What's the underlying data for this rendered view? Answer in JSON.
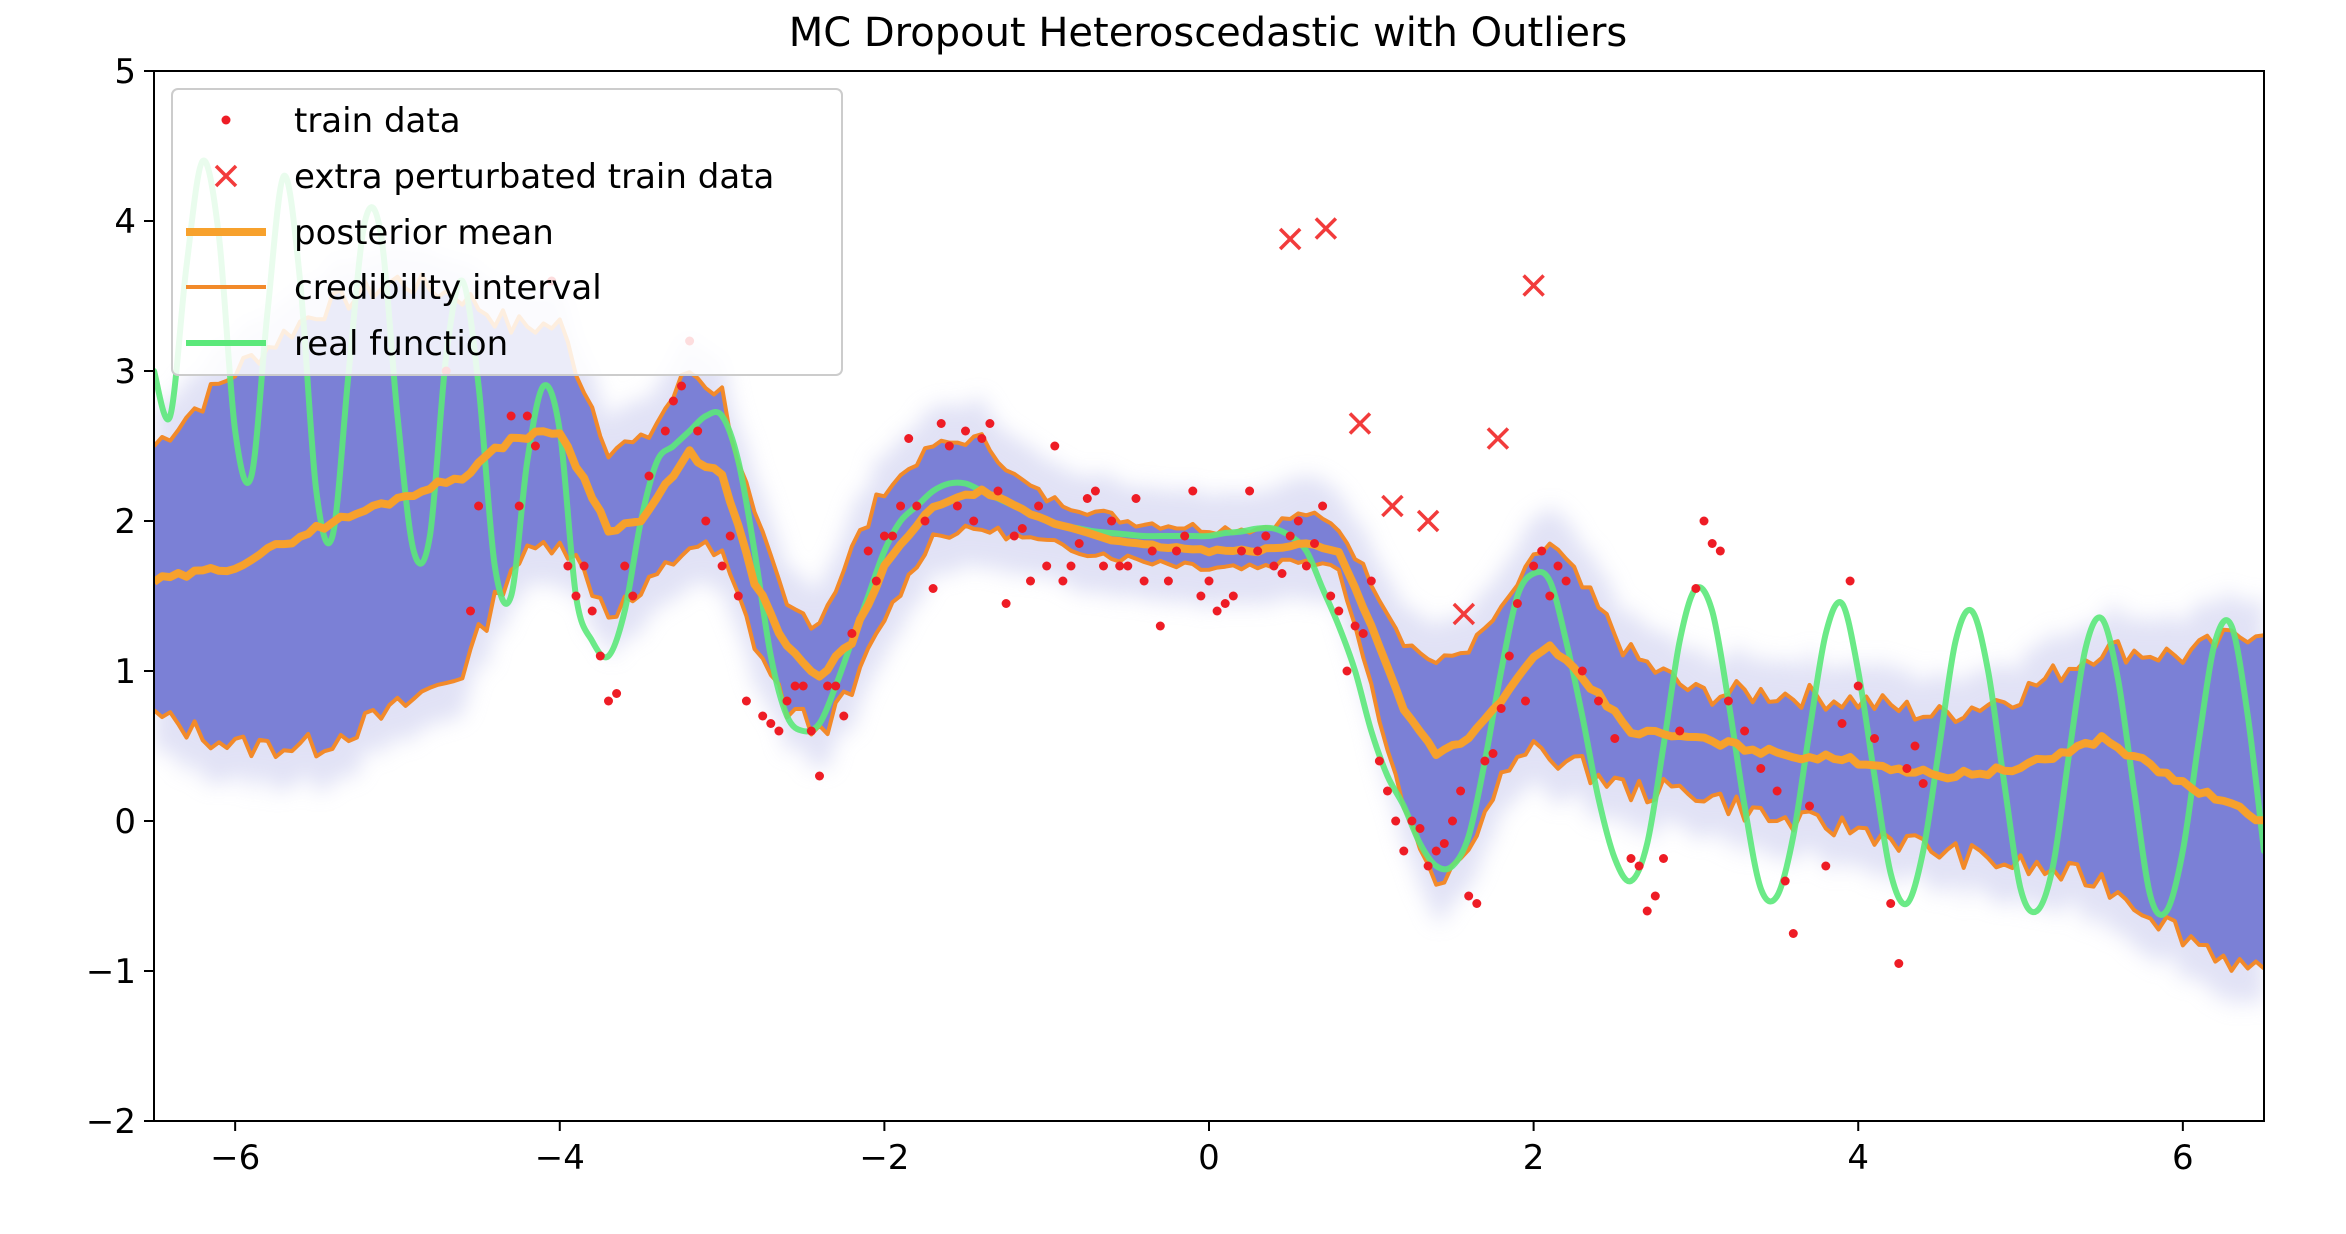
{
  "chart_data": {
    "type": "line",
    "title": "MC Dropout Heteroscedastic with Outliers",
    "xlabel": "",
    "ylabel": "",
    "xlim": [
      -6.5,
      6.5
    ],
    "ylim": [
      -2,
      5
    ],
    "xticks": [
      -6,
      -4,
      -2,
      0,
      2,
      4,
      6
    ],
    "xtick_labels": [
      "−6",
      "−4",
      "−2",
      "0",
      "2",
      "4",
      "6"
    ],
    "yticks": [
      -2,
      -1,
      0,
      1,
      2,
      3,
      4,
      5
    ],
    "ytick_labels": [
      "−2",
      "−1",
      "0",
      "1",
      "2",
      "3",
      "4",
      "5"
    ],
    "grid": false,
    "legend_position": "top-left",
    "legend": [
      {
        "key": "train",
        "label": "train data"
      },
      {
        "key": "outliers",
        "label": "extra perturbated train data"
      },
      {
        "key": "mean",
        "label": "posterior mean"
      },
      {
        "key": "interval",
        "label": "credibility interval"
      },
      {
        "key": "real",
        "label": "real function"
      }
    ],
    "colors": {
      "train": "#ee1c25",
      "outliers": "#f23b3b",
      "mean": "#f7a12c",
      "interval": "#f28a2a",
      "real": "#5be87a",
      "band": "#7b80d6",
      "band_haze": "#c9cbee"
    },
    "posterior_mean": {
      "x": [
        -6.5,
        -6.0,
        -5.5,
        -5.0,
        -4.6,
        -4.3,
        -4.0,
        -3.7,
        -3.5,
        -3.2,
        -3.0,
        -2.8,
        -2.6,
        -2.4,
        -2.2,
        -2.0,
        -1.7,
        -1.4,
        -1.2,
        -1.0,
        -0.5,
        0.0,
        0.3,
        0.6,
        0.8,
        1.0,
        1.2,
        1.4,
        1.6,
        1.8,
        2.0,
        2.1,
        2.3,
        2.6,
        3.0,
        3.5,
        4.0,
        4.5,
        5.0,
        5.5,
        6.0,
        6.5
      ],
      "y": [
        1.6,
        1.7,
        1.95,
        2.15,
        2.3,
        2.55,
        2.6,
        1.95,
        2.0,
        2.45,
        2.3,
        1.6,
        1.15,
        0.95,
        1.2,
        1.7,
        2.1,
        2.2,
        2.1,
        2.0,
        1.85,
        1.8,
        1.8,
        1.85,
        1.8,
        1.3,
        0.75,
        0.45,
        0.55,
        0.8,
        1.1,
        1.15,
        0.95,
        0.6,
        0.55,
        0.45,
        0.4,
        0.3,
        0.35,
        0.55,
        0.25,
        0.0
      ]
    },
    "credibility_upper": {
      "x": [
        -6.5,
        -6.0,
        -5.5,
        -5.0,
        -4.6,
        -4.3,
        -4.0,
        -3.7,
        -3.5,
        -3.2,
        -3.0,
        -2.8,
        -2.6,
        -2.4,
        -2.2,
        -2.0,
        -1.7,
        -1.4,
        -1.2,
        -1.0,
        -0.5,
        0.0,
        0.3,
        0.6,
        0.8,
        1.0,
        1.2,
        1.4,
        1.6,
        1.8,
        2.0,
        2.1,
        2.3,
        2.6,
        3.0,
        3.5,
        4.0,
        4.5,
        5.0,
        5.5,
        6.0,
        6.5
      ],
      "y": [
        2.5,
        3.0,
        3.4,
        3.6,
        3.5,
        3.3,
        3.3,
        2.5,
        2.5,
        3.0,
        2.85,
        2.0,
        1.4,
        1.35,
        1.8,
        2.2,
        2.5,
        2.55,
        2.3,
        2.15,
        2.0,
        1.95,
        1.95,
        2.05,
        1.95,
        1.6,
        1.2,
        1.05,
        1.15,
        1.4,
        1.75,
        1.85,
        1.55,
        1.1,
        0.85,
        0.85,
        0.8,
        0.7,
        0.85,
        1.15,
        1.1,
        1.3
      ]
    },
    "credibility_lower": {
      "x": [
        -6.5,
        -6.0,
        -5.5,
        -5.0,
        -4.6,
        -4.3,
        -4.0,
        -3.7,
        -3.5,
        -3.2,
        -3.0,
        -2.8,
        -2.6,
        -2.4,
        -2.2,
        -2.0,
        -1.7,
        -1.4,
        -1.2,
        -1.0,
        -0.5,
        0.0,
        0.3,
        0.6,
        0.8,
        1.0,
        1.2,
        1.4,
        1.6,
        1.8,
        2.0,
        2.1,
        2.3,
        2.6,
        3.0,
        3.5,
        4.0,
        4.5,
        5.0,
        5.5,
        6.0,
        6.5
      ],
      "y": [
        0.7,
        0.5,
        0.5,
        0.75,
        1.0,
        1.7,
        1.9,
        1.4,
        1.5,
        1.85,
        1.75,
        1.2,
        0.75,
        0.6,
        0.85,
        1.35,
        1.9,
        1.95,
        1.9,
        1.85,
        1.75,
        1.7,
        1.7,
        1.75,
        1.7,
        0.9,
        0.1,
        -0.45,
        -0.2,
        0.3,
        0.5,
        0.45,
        0.35,
        0.2,
        0.2,
        0.0,
        -0.05,
        -0.2,
        -0.3,
        -0.4,
        -0.75,
        -1.05
      ]
    },
    "real_function": {
      "x": [
        -6.5,
        -6.4,
        -6.3,
        -6.2,
        -6.1,
        -6.0,
        -5.9,
        -5.8,
        -5.7,
        -5.6,
        -5.5,
        -5.4,
        -5.3,
        -5.2,
        -5.1,
        -5.0,
        -4.9,
        -4.8,
        -4.7,
        -4.6,
        -4.5,
        -4.4,
        -4.3,
        -4.2,
        -4.1,
        -4.0,
        -3.9,
        -3.8,
        -3.7,
        -3.6,
        -3.5,
        -3.4,
        -3.3,
        -3.2,
        -3.1,
        -3.0,
        -2.9,
        -2.8,
        -2.7,
        -2.6,
        -2.5,
        -2.4,
        -2.3,
        -2.2,
        -2.1,
        -2.0,
        -1.9,
        -1.8,
        -1.7,
        -1.6,
        -1.5,
        -1.4,
        -1.3,
        -1.2,
        -1.1,
        -1.0,
        -0.9,
        -0.8,
        -0.7,
        -0.6,
        -0.5,
        -0.4,
        -0.3,
        -0.2,
        -0.1,
        0.0,
        0.1,
        0.2,
        0.3,
        0.4,
        0.5,
        0.6,
        0.7,
        0.8,
        0.9,
        1.0,
        1.1,
        1.2,
        1.3,
        1.4,
        1.5,
        1.6,
        1.7,
        1.8,
        1.9,
        2.0,
        2.1,
        2.2,
        2.3,
        2.4,
        2.5,
        2.6,
        2.7,
        2.8,
        2.9,
        3.0,
        3.1,
        3.2,
        3.3,
        3.4,
        3.5,
        3.6,
        3.7,
        3.8,
        3.9,
        4.0,
        4.1,
        4.2,
        4.3,
        4.4,
        4.5,
        4.6,
        4.7,
        4.8,
        4.9,
        5.0,
        5.1,
        5.2,
        5.3,
        5.4,
        5.5,
        5.6,
        5.7,
        5.8,
        5.9,
        6.0,
        6.1,
        6.2,
        6.3,
        6.4,
        6.5
      ],
      "y": [
        3.0,
        2.7,
        3.7,
        4.4,
        3.9,
        2.6,
        2.3,
        3.4,
        4.3,
        3.6,
        2.2,
        1.9,
        3.0,
        4.0,
        3.9,
        2.7,
        1.8,
        1.9,
        3.1,
        3.6,
        2.9,
        1.7,
        1.5,
        2.4,
        2.9,
        2.6,
        1.5,
        1.2,
        1.1,
        1.4,
        2.0,
        2.4,
        2.5,
        2.6,
        2.7,
        2.7,
        2.4,
        1.8,
        1.1,
        0.7,
        0.6,
        0.65,
        0.9,
        1.2,
        1.5,
        1.8,
        2.0,
        2.1,
        2.2,
        2.25,
        2.25,
        2.2,
        2.15,
        2.1,
        2.05,
        2.0,
        1.97,
        1.95,
        1.93,
        1.92,
        1.91,
        1.9,
        1.9,
        1.9,
        1.9,
        1.9,
        1.92,
        1.93,
        1.95,
        1.95,
        1.9,
        1.8,
        1.55,
        1.3,
        1.0,
        0.6,
        0.3,
        0.1,
        -0.15,
        -0.3,
        -0.3,
        -0.1,
        0.4,
        1.0,
        1.5,
        1.65,
        1.6,
        1.2,
        0.7,
        0.15,
        -0.25,
        -0.4,
        -0.15,
        0.5,
        1.2,
        1.55,
        1.4,
        0.8,
        0.1,
        -0.45,
        -0.5,
        -0.1,
        0.6,
        1.25,
        1.45,
        1.0,
        0.3,
        -0.35,
        -0.55,
        -0.2,
        0.5,
        1.2,
        1.4,
        1.0,
        0.25,
        -0.45,
        -0.6,
        -0.3,
        0.45,
        1.15,
        1.35,
        0.95,
        0.2,
        -0.5,
        -0.6,
        -0.2,
        0.55,
        1.2,
        1.3,
        0.7,
        -0.2
      ]
    },
    "train_points": {
      "x": [
        -4.7,
        -4.55,
        -4.5,
        -4.3,
        -4.25,
        -4.2,
        -4.15,
        -4.05,
        -3.95,
        -3.9,
        -3.85,
        -3.8,
        -3.75,
        -3.7,
        -3.65,
        -3.6,
        -3.55,
        -3.45,
        -3.35,
        -3.3,
        -3.25,
        -3.2,
        -3.15,
        -3.1,
        -3.0,
        -2.95,
        -2.9,
        -2.85,
        -2.75,
        -2.7,
        -2.65,
        -2.6,
        -2.55,
        -2.5,
        -2.45,
        -2.4,
        -2.35,
        -2.3,
        -2.25,
        -2.2,
        -2.1,
        -2.05,
        -2.0,
        -1.95,
        -1.9,
        -1.85,
        -1.8,
        -1.75,
        -1.7,
        -1.65,
        -1.6,
        -1.55,
        -1.5,
        -1.45,
        -1.4,
        -1.35,
        -1.3,
        -1.25,
        -1.2,
        -1.15,
        -1.1,
        -1.05,
        -1.0,
        -0.95,
        -0.9,
        -0.85,
        -0.8,
        -0.75,
        -0.7,
        -0.65,
        -0.6,
        -0.55,
        -0.5,
        -0.45,
        -0.4,
        -0.35,
        -0.3,
        -0.25,
        -0.2,
        -0.15,
        -0.1,
        -0.05,
        0.0,
        0.05,
        0.1,
        0.15,
        0.2,
        0.25,
        0.3,
        0.35,
        0.4,
        0.45,
        0.5,
        0.55,
        0.6,
        0.65,
        0.7,
        0.75,
        0.8,
        0.85,
        0.9,
        0.95,
        1.0,
        1.05,
        1.1,
        1.15,
        1.2,
        1.25,
        1.3,
        1.35,
        1.4,
        1.45,
        1.5,
        1.55,
        1.6,
        1.65,
        1.7,
        1.75,
        1.8,
        1.85,
        1.9,
        1.95,
        2.0,
        2.05,
        2.1,
        2.15,
        2.2,
        2.3,
        2.4,
        2.5,
        2.6,
        2.65,
        2.7,
        2.75,
        2.8,
        2.9,
        3.0,
        3.05,
        3.1,
        3.15,
        3.2,
        3.3,
        3.4,
        3.5,
        3.55,
        3.6,
        3.7,
        3.8,
        3.9,
        3.95,
        4.0,
        4.1,
        4.2,
        4.25,
        4.3,
        4.35,
        4.4
      ],
      "y": [
        3.0,
        1.4,
        2.1,
        2.7,
        2.1,
        2.7,
        2.5,
        3.6,
        1.7,
        1.5,
        1.7,
        1.4,
        1.1,
        0.8,
        0.85,
        1.7,
        1.5,
        2.3,
        2.6,
        2.8,
        2.9,
        3.2,
        2.6,
        2.0,
        1.7,
        1.9,
        1.5,
        0.8,
        0.7,
        0.65,
        0.6,
        0.8,
        0.9,
        0.9,
        0.6,
        0.3,
        0.9,
        0.9,
        0.7,
        1.25,
        1.8,
        1.6,
        1.9,
        1.9,
        2.1,
        2.55,
        2.1,
        2.0,
        1.55,
        2.65,
        2.5,
        2.1,
        2.6,
        2.0,
        2.55,
        2.65,
        2.2,
        1.45,
        1.9,
        1.95,
        1.6,
        2.1,
        1.7,
        2.5,
        1.6,
        1.7,
        1.85,
        2.15,
        2.2,
        1.7,
        2.0,
        1.7,
        1.7,
        2.15,
        1.6,
        1.8,
        1.3,
        1.6,
        1.8,
        1.9,
        2.2,
        1.5,
        1.6,
        1.4,
        1.45,
        1.5,
        1.8,
        2.2,
        1.8,
        1.9,
        1.7,
        1.65,
        1.9,
        2.0,
        1.7,
        1.85,
        2.1,
        1.5,
        1.4,
        1.0,
        1.3,
        1.25,
        1.6,
        0.4,
        0.2,
        0.0,
        -0.2,
        0.0,
        -0.05,
        -0.3,
        -0.2,
        -0.15,
        0.0,
        0.2,
        -0.5,
        -0.55,
        0.4,
        0.45,
        0.75,
        1.1,
        1.45,
        0.8,
        1.7,
        1.8,
        1.5,
        1.7,
        1.6,
        1.0,
        0.8,
        0.55,
        -0.25,
        -0.3,
        -0.6,
        -0.5,
        -0.25,
        0.6,
        1.55,
        2.0,
        1.85,
        1.8,
        0.8,
        0.6,
        0.35,
        0.2,
        -0.4,
        -0.75,
        0.1,
        -0.3,
        0.65,
        1.6,
        0.9,
        0.55,
        -0.55,
        -0.95,
        0.35,
        0.5,
        0.25
      ]
    },
    "outlier_points": {
      "x": [
        0.5,
        0.72,
        0.93,
        1.13,
        1.35,
        1.57,
        1.78,
        2.0
      ],
      "y": [
        3.88,
        3.95,
        2.65,
        2.1,
        2.0,
        1.38,
        2.55,
        3.57
      ]
    }
  }
}
